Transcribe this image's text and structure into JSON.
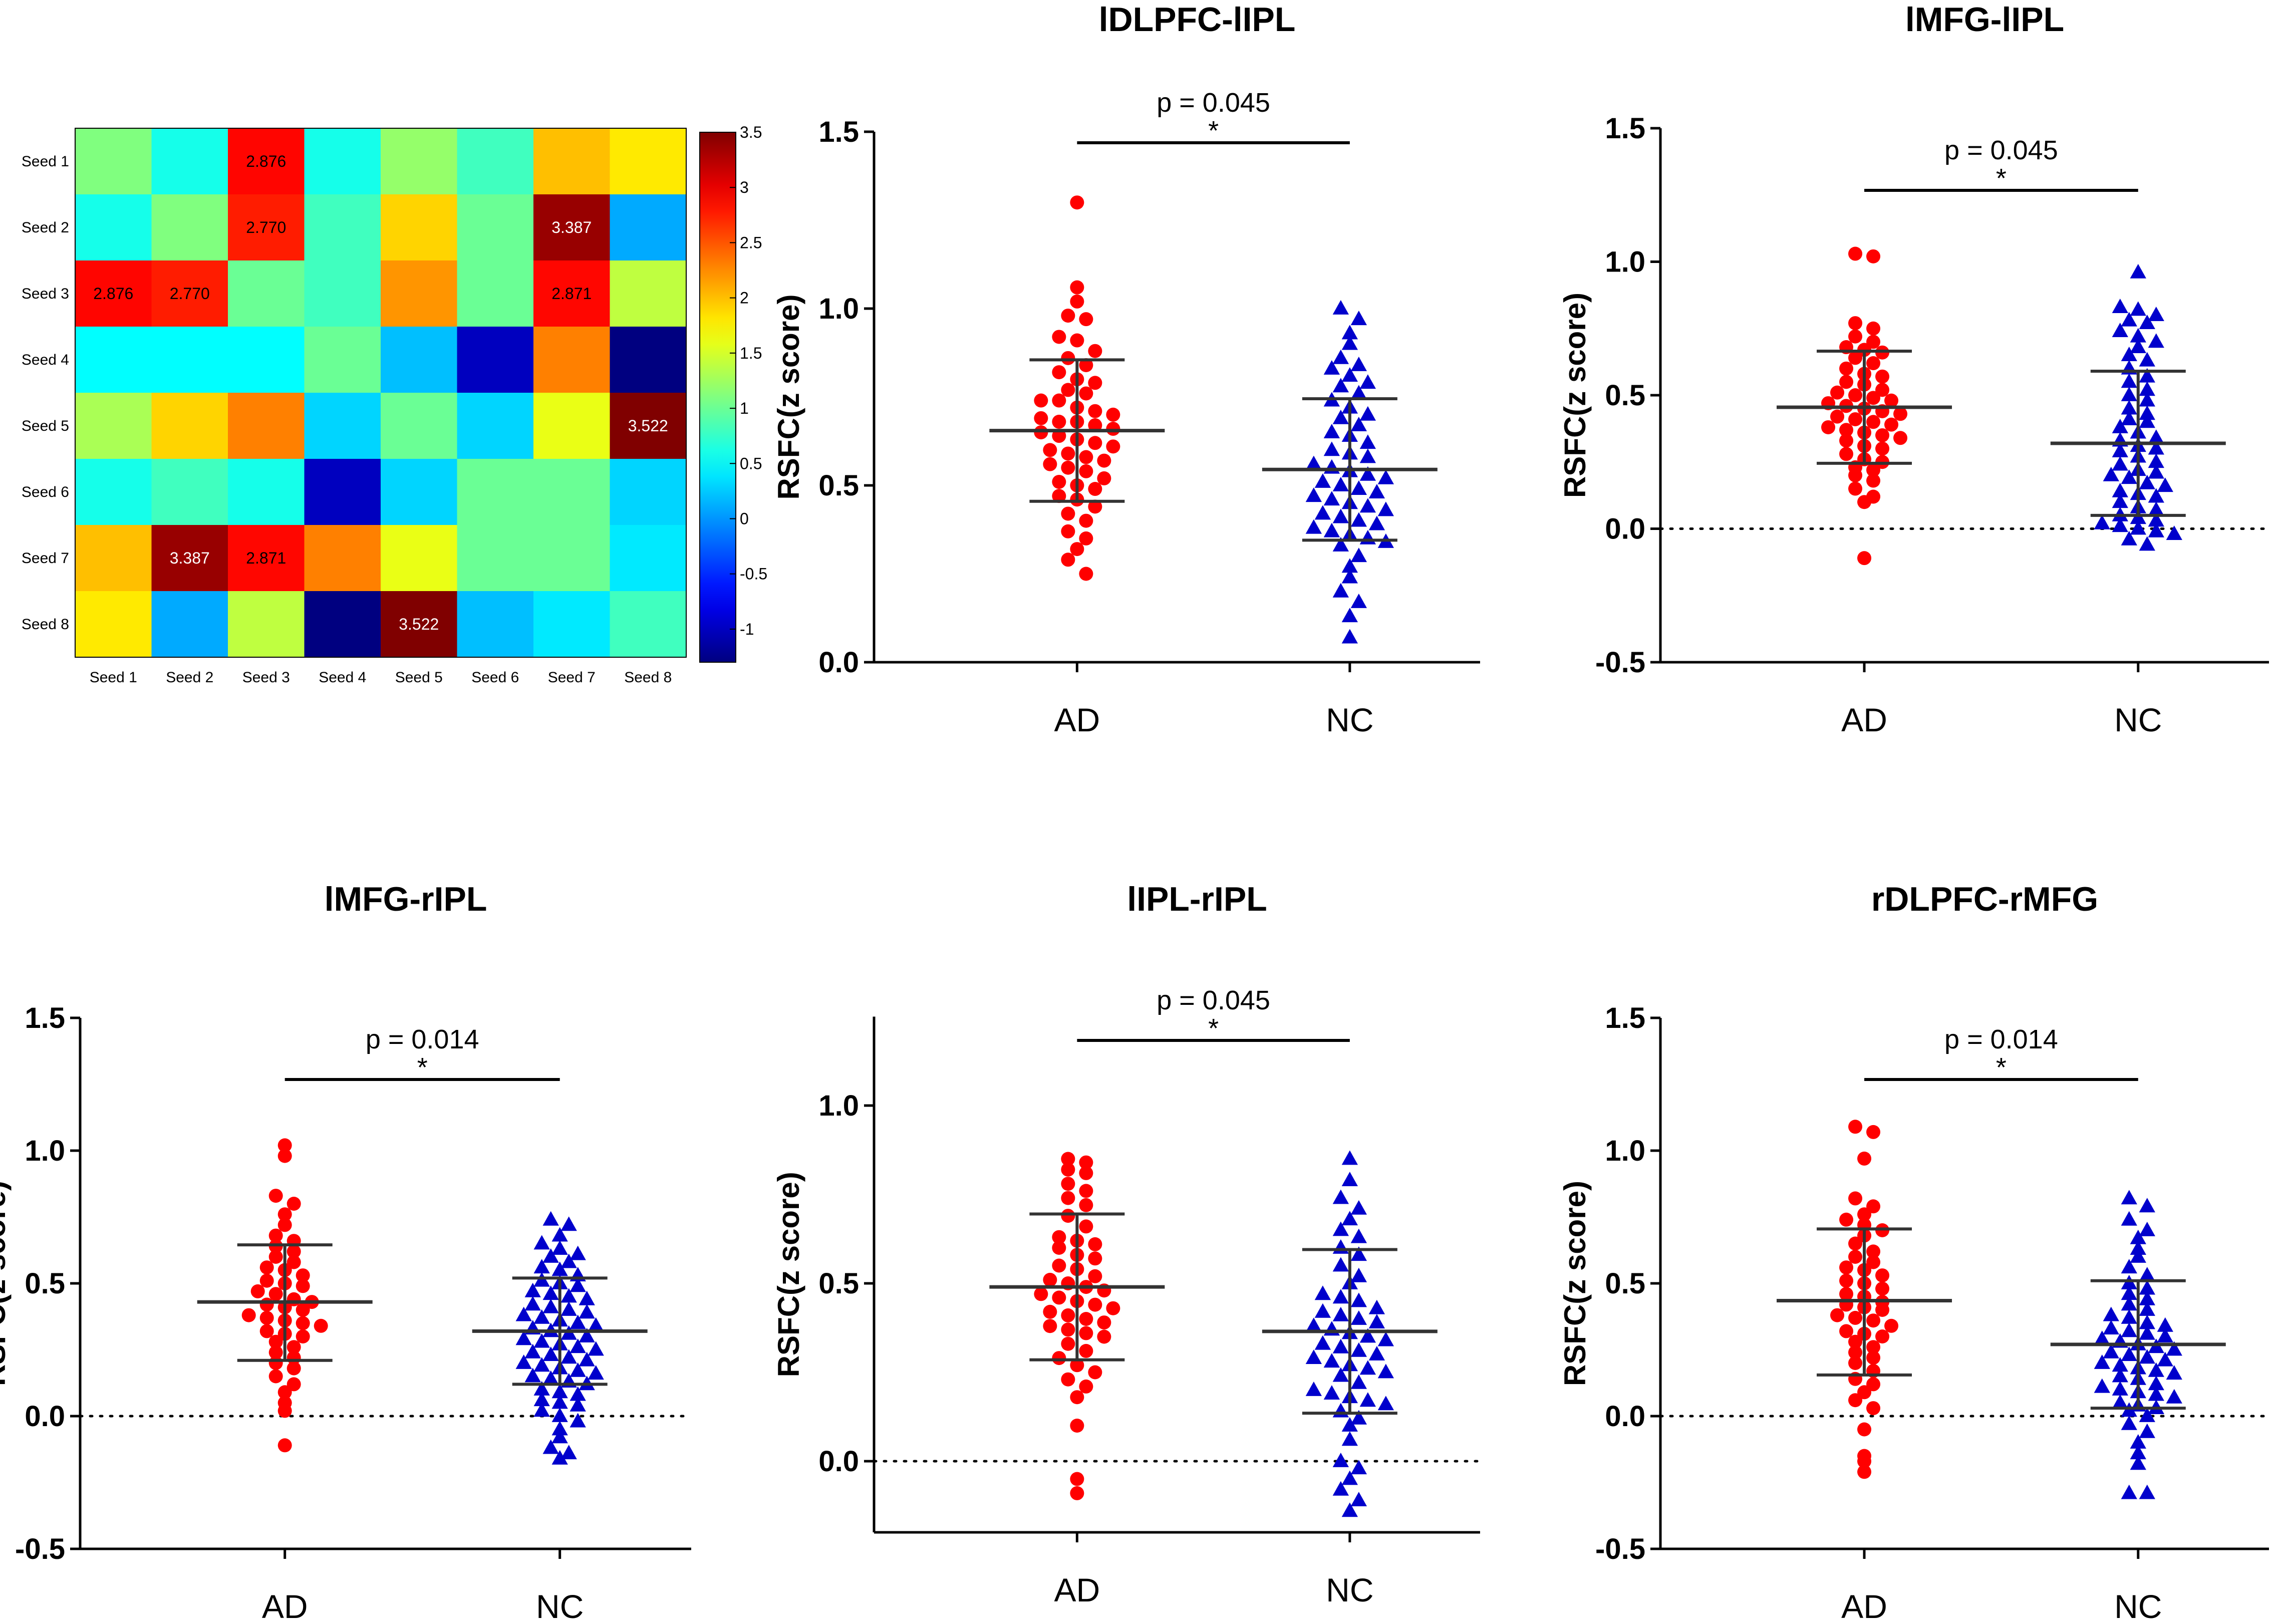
{
  "colors": {
    "ad": "#ff0000",
    "nc": "#0000cc",
    "axis": "#000000",
    "errorbar": "#333333"
  },
  "heatmap": {
    "title": "",
    "row_labels": [
      "Seed 1",
      "Seed 2",
      "Seed 3",
      "Seed 4",
      "Seed 5",
      "Seed 6",
      "Seed 7",
      "Seed 8"
    ],
    "col_labels": [
      "Seed 1",
      "Seed 2",
      "Seed 3",
      "Seed 4",
      "Seed 5",
      "Seed 6",
      "Seed 7",
      "Seed 8"
    ],
    "matrix": [
      [
        1.1,
        0.6,
        2.876,
        0.6,
        1.2,
        0.8,
        2.0,
        1.8
      ],
      [
        0.6,
        1.1,
        2.77,
        0.8,
        1.9,
        1.0,
        3.387,
        0.1
      ],
      [
        2.876,
        2.77,
        1.0,
        0.8,
        2.2,
        1.0,
        2.871,
        1.4
      ],
      [
        0.5,
        0.5,
        0.5,
        1.0,
        0.2,
        -1.0,
        2.3,
        -1.3
      ],
      [
        1.3,
        1.9,
        2.3,
        0.3,
        1.0,
        0.3,
        1.6,
        3.522
      ],
      [
        0.6,
        0.8,
        0.6,
        -1.0,
        0.3,
        1.0,
        1.0,
        0.3
      ],
      [
        2.0,
        3.387,
        2.871,
        2.3,
        1.6,
        1.0,
        1.0,
        0.4
      ],
      [
        1.8,
        0.1,
        1.4,
        -1.3,
        3.522,
        0.2,
        0.4,
        0.8
      ]
    ],
    "annotations": [
      {
        "row": 0,
        "col": 2,
        "text": "2.876"
      },
      {
        "row": 1,
        "col": 2,
        "text": "2.770"
      },
      {
        "row": 1,
        "col": 6,
        "text": "3.387"
      },
      {
        "row": 2,
        "col": 0,
        "text": "2.876"
      },
      {
        "row": 2,
        "col": 1,
        "text": "2.770"
      },
      {
        "row": 2,
        "col": 6,
        "text": "2.871"
      },
      {
        "row": 4,
        "col": 7,
        "text": "3.522"
      },
      {
        "row": 6,
        "col": 1,
        "text": "3.387"
      },
      {
        "row": 6,
        "col": 2,
        "text": "2.871"
      },
      {
        "row": 7,
        "col": 4,
        "text": "3.522"
      }
    ],
    "colorbar": {
      "min": -1.3,
      "max": 3.5,
      "ticks": [
        "-1",
        "-0.5",
        "0",
        "0.5",
        "1",
        "1.5",
        "2",
        "2.5",
        "3",
        "3.5"
      ]
    }
  },
  "chart_data": [
    {
      "type": "scatter",
      "title": "lDLPFC-lIPL",
      "ylabel": "RSFC(z score)",
      "categories": [
        "AD",
        "NC"
      ],
      "ylim": [
        0,
        1.5
      ],
      "yticks": [
        "0.0",
        "0.5",
        "1.0",
        "1.5"
      ],
      "zero_line": false,
      "pvalue": "p = 0.045",
      "star": "*",
      "series": [
        {
          "name": "AD",
          "mean": 0.655,
          "sd_low": 0.455,
          "sd_high": 0.855,
          "values": [
            1.3,
            1.06,
            1.02,
            0.98,
            0.97,
            0.92,
            0.91,
            0.88,
            0.86,
            0.84,
            0.82,
            0.8,
            0.79,
            0.77,
            0.76,
            0.74,
            0.74,
            0.72,
            0.71,
            0.7,
            0.69,
            0.68,
            0.68,
            0.67,
            0.66,
            0.65,
            0.64,
            0.63,
            0.62,
            0.61,
            0.6,
            0.59,
            0.58,
            0.57,
            0.56,
            0.55,
            0.54,
            0.52,
            0.51,
            0.5,
            0.49,
            0.47,
            0.46,
            0.44,
            0.42,
            0.4,
            0.37,
            0.35,
            0.32,
            0.29,
            0.25
          ]
        },
        {
          "name": "NC",
          "mean": 0.545,
          "sd_low": 0.345,
          "sd_high": 0.745,
          "values": [
            1.0,
            0.97,
            0.93,
            0.9,
            0.86,
            0.84,
            0.83,
            0.81,
            0.79,
            0.78,
            0.76,
            0.74,
            0.72,
            0.7,
            0.69,
            0.67,
            0.65,
            0.64,
            0.62,
            0.6,
            0.59,
            0.58,
            0.56,
            0.55,
            0.54,
            0.53,
            0.52,
            0.51,
            0.5,
            0.49,
            0.48,
            0.47,
            0.46,
            0.45,
            0.44,
            0.43,
            0.42,
            0.41,
            0.4,
            0.39,
            0.38,
            0.37,
            0.36,
            0.35,
            0.34,
            0.33,
            0.3,
            0.27,
            0.24,
            0.2,
            0.17,
            0.13,
            0.07
          ]
        }
      ]
    },
    {
      "type": "scatter",
      "title": "lMFG-lIPL",
      "ylabel": "RSFC(z score)",
      "categories": [
        "AD",
        "NC"
      ],
      "ylim": [
        -0.5,
        1.5
      ],
      "yticks": [
        "-0.5",
        "0.0",
        "0.5",
        "1.0",
        "1.5"
      ],
      "zero_line": true,
      "pvalue": "p = 0.045",
      "star": "*",
      "series": [
        {
          "name": "AD",
          "mean": 0.455,
          "sd_low": 0.245,
          "sd_high": 0.665,
          "values": [
            1.03,
            1.02,
            0.77,
            0.75,
            0.72,
            0.7,
            0.68,
            0.67,
            0.66,
            0.64,
            0.62,
            0.6,
            0.58,
            0.57,
            0.55,
            0.54,
            0.52,
            0.51,
            0.5,
            0.49,
            0.48,
            0.47,
            0.46,
            0.45,
            0.44,
            0.43,
            0.42,
            0.41,
            0.4,
            0.39,
            0.38,
            0.37,
            0.36,
            0.35,
            0.34,
            0.33,
            0.31,
            0.3,
            0.28,
            0.26,
            0.25,
            0.23,
            0.22,
            0.2,
            0.18,
            0.15,
            0.12,
            0.1,
            -0.11
          ]
        },
        {
          "name": "NC",
          "mean": 0.32,
          "sd_low": 0.05,
          "sd_high": 0.59,
          "values": [
            0.96,
            0.83,
            0.82,
            0.8,
            0.78,
            0.77,
            0.74,
            0.72,
            0.7,
            0.68,
            0.65,
            0.63,
            0.6,
            0.57,
            0.55,
            0.52,
            0.5,
            0.48,
            0.45,
            0.43,
            0.41,
            0.4,
            0.38,
            0.36,
            0.34,
            0.33,
            0.31,
            0.3,
            0.29,
            0.27,
            0.25,
            0.24,
            0.22,
            0.21,
            0.2,
            0.19,
            0.17,
            0.16,
            0.14,
            0.13,
            0.12,
            0.1,
            0.08,
            0.07,
            0.05,
            0.04,
            0.03,
            0.02,
            0.01,
            0.0,
            -0.01,
            -0.02,
            -0.04,
            -0.06
          ]
        }
      ]
    },
    {
      "type": "scatter",
      "title": "lMFG-rIPL",
      "ylabel": "RSFC(z score)",
      "categories": [
        "AD",
        "NC"
      ],
      "ylim": [
        -0.5,
        1.5
      ],
      "yticks": [
        "-0.5",
        "0.0",
        "0.5",
        "1.0",
        "1.5"
      ],
      "zero_line": true,
      "pvalue": "p = 0.014",
      "star": "*",
      "series": [
        {
          "name": "AD",
          "mean": 0.43,
          "sd_low": 0.21,
          "sd_high": 0.645,
          "values": [
            1.02,
            0.98,
            0.83,
            0.8,
            0.76,
            0.72,
            0.68,
            0.66,
            0.64,
            0.62,
            0.6,
            0.58,
            0.56,
            0.55,
            0.53,
            0.51,
            0.5,
            0.49,
            0.47,
            0.46,
            0.44,
            0.43,
            0.42,
            0.41,
            0.4,
            0.38,
            0.37,
            0.36,
            0.35,
            0.34,
            0.32,
            0.31,
            0.3,
            0.28,
            0.26,
            0.24,
            0.22,
            0.2,
            0.18,
            0.15,
            0.12,
            0.09,
            0.05,
            0.02,
            -0.11
          ]
        },
        {
          "name": "NC",
          "mean": 0.32,
          "sd_low": 0.12,
          "sd_high": 0.52,
          "values": [
            0.74,
            0.72,
            0.68,
            0.65,
            0.63,
            0.61,
            0.6,
            0.58,
            0.56,
            0.55,
            0.53,
            0.51,
            0.5,
            0.49,
            0.47,
            0.46,
            0.45,
            0.44,
            0.42,
            0.41,
            0.4,
            0.39,
            0.38,
            0.37,
            0.36,
            0.35,
            0.34,
            0.33,
            0.32,
            0.31,
            0.3,
            0.29,
            0.28,
            0.27,
            0.26,
            0.25,
            0.24,
            0.23,
            0.22,
            0.21,
            0.2,
            0.19,
            0.18,
            0.17,
            0.16,
            0.15,
            0.14,
            0.13,
            0.12,
            0.1,
            0.09,
            0.08,
            0.06,
            0.05,
            0.04,
            0.02,
            0.0,
            -0.02,
            -0.05,
            -0.08,
            -0.12,
            -0.14,
            -0.16
          ]
        }
      ]
    },
    {
      "type": "scatter",
      "title": "lIPL-rIPL",
      "ylabel": "RSFC(z score)",
      "categories": [
        "AD",
        "NC"
      ],
      "ylim": [
        -0.2,
        1.25
      ],
      "yticks": [
        "0.0",
        "0.5",
        "1.0"
      ],
      "zero_line": true,
      "pvalue": "p = 0.045",
      "star": "*",
      "series": [
        {
          "name": "AD",
          "mean": 0.49,
          "sd_low": 0.285,
          "sd_high": 0.695,
          "values": [
            0.85,
            0.84,
            0.82,
            0.81,
            0.78,
            0.76,
            0.74,
            0.72,
            0.69,
            0.66,
            0.63,
            0.62,
            0.61,
            0.6,
            0.58,
            0.57,
            0.55,
            0.54,
            0.52,
            0.51,
            0.5,
            0.49,
            0.48,
            0.47,
            0.46,
            0.45,
            0.44,
            0.43,
            0.42,
            0.41,
            0.4,
            0.39,
            0.38,
            0.37,
            0.36,
            0.35,
            0.33,
            0.31,
            0.29,
            0.27,
            0.25,
            0.23,
            0.21,
            0.18,
            0.1,
            -0.05,
            -0.09
          ]
        },
        {
          "name": "NC",
          "mean": 0.365,
          "sd_low": 0.135,
          "sd_high": 0.595,
          "values": [
            0.85,
            0.79,
            0.74,
            0.71,
            0.68,
            0.65,
            0.63,
            0.6,
            0.58,
            0.55,
            0.52,
            0.5,
            0.47,
            0.46,
            0.45,
            0.43,
            0.42,
            0.41,
            0.4,
            0.39,
            0.38,
            0.37,
            0.36,
            0.35,
            0.34,
            0.33,
            0.32,
            0.31,
            0.3,
            0.29,
            0.28,
            0.27,
            0.26,
            0.25,
            0.24,
            0.22,
            0.2,
            0.19,
            0.18,
            0.17,
            0.16,
            0.14,
            0.12,
            0.1,
            0.06,
            0.0,
            -0.02,
            -0.05,
            -0.08,
            -0.11,
            -0.14
          ]
        }
      ]
    },
    {
      "type": "scatter",
      "title": "rDLPFC-rMFG",
      "ylabel": "RSFC(z score)",
      "categories": [
        "AD",
        "NC"
      ],
      "ylim": [
        -0.5,
        1.5
      ],
      "yticks": [
        "-0.5",
        "0.0",
        "0.5",
        "1.0",
        "1.5"
      ],
      "zero_line": true,
      "pvalue": "p = 0.014",
      "star": "*",
      "series": [
        {
          "name": "AD",
          "mean": 0.435,
          "sd_low": 0.155,
          "sd_high": 0.705,
          "values": [
            1.09,
            1.07,
            0.97,
            0.82,
            0.79,
            0.76,
            0.74,
            0.72,
            0.7,
            0.68,
            0.65,
            0.62,
            0.6,
            0.58,
            0.56,
            0.55,
            0.53,
            0.51,
            0.5,
            0.48,
            0.46,
            0.45,
            0.43,
            0.42,
            0.41,
            0.4,
            0.38,
            0.37,
            0.36,
            0.34,
            0.32,
            0.31,
            0.3,
            0.28,
            0.26,
            0.24,
            0.22,
            0.2,
            0.17,
            0.14,
            0.12,
            0.09,
            0.06,
            0.03,
            -0.05,
            -0.15,
            -0.17,
            -0.21
          ]
        },
        {
          "name": "NC",
          "mean": 0.27,
          "sd_low": 0.03,
          "sd_high": 0.51,
          "values": [
            0.82,
            0.79,
            0.74,
            0.7,
            0.67,
            0.63,
            0.6,
            0.56,
            0.53,
            0.5,
            0.48,
            0.46,
            0.44,
            0.42,
            0.4,
            0.38,
            0.37,
            0.35,
            0.34,
            0.33,
            0.32,
            0.31,
            0.3,
            0.29,
            0.28,
            0.27,
            0.26,
            0.25,
            0.24,
            0.23,
            0.22,
            0.21,
            0.2,
            0.19,
            0.18,
            0.17,
            0.16,
            0.15,
            0.14,
            0.12,
            0.11,
            0.1,
            0.09,
            0.08,
            0.07,
            0.05,
            0.04,
            0.03,
            0.02,
            0.0,
            -0.03,
            -0.06,
            -0.1,
            -0.14,
            -0.18,
            -0.29,
            -0.29
          ]
        }
      ]
    }
  ]
}
